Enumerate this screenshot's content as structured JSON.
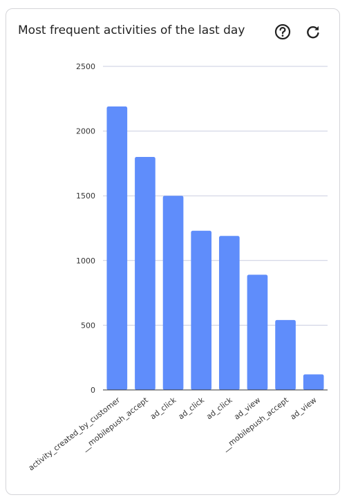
{
  "card": {
    "title": "Most frequent activities of the last day"
  },
  "icons": {
    "help": "help-circle-icon",
    "refresh": "refresh-icon"
  },
  "colors": {
    "bar": "#5f8dfb",
    "grid": "#c9cde0",
    "axis": "#333333"
  },
  "chart_data": {
    "type": "bar",
    "title": "Most frequent activities of the last day",
    "xlabel": "",
    "ylabel": "",
    "ylim": [
      0,
      2500
    ],
    "yticks": [
      0,
      500,
      1000,
      1500,
      2000,
      2500
    ],
    "grid": true,
    "legend": "none",
    "categories": [
      "activity_created_by_customer",
      "__mobilepush_accept",
      "ad_click",
      "ad_click",
      "ad_click",
      "ad_view",
      "__mobilepush_accept",
      "ad_view"
    ],
    "values": [
      2190,
      1800,
      1500,
      1230,
      1190,
      890,
      540,
      120
    ]
  }
}
